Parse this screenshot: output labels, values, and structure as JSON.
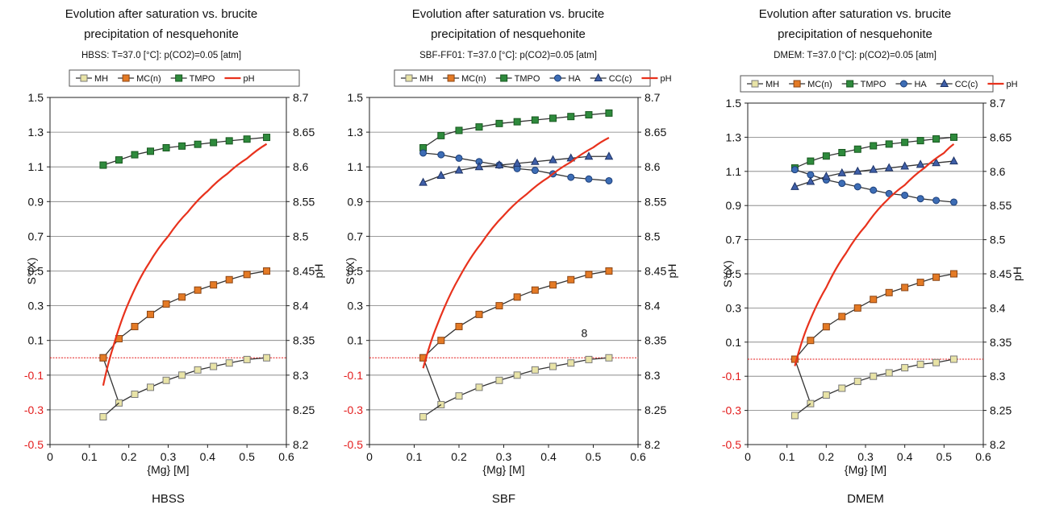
{
  "chart_data": [
    {
      "type": "line",
      "panel_label": "HBSS",
      "title": "Evolution after saturation vs. brucite",
      "title_line2": "precipitation of nesquehonite",
      "subtitle": "HBSS: T=37.0 [°C]: p(CO2)=0.05 [atm]",
      "xlabel": "{Mg} [M]",
      "ylabel": "S°(X)",
      "ylabel_right": "pH",
      "xlim": [
        0,
        0.6
      ],
      "ylim": [
        -0.5,
        1.5
      ],
      "ylim_right": [
        8.2,
        8.7
      ],
      "xticks": [
        "0",
        "0.1",
        "0.2",
        "0.3",
        "0.4",
        "0.5",
        "0.6"
      ],
      "yticks": [
        "1.5",
        "1.3",
        "1.1",
        "0.9",
        "0.7",
        "0.5",
        "0.3",
        "0.1",
        "-0.1",
        "-0.3",
        "-0.5"
      ],
      "yticks_right": [
        "8.7",
        "8.65",
        "8.6",
        "8.55",
        "8.5",
        "8.45",
        "8.4",
        "8.35",
        "8.3",
        "8.25",
        "8.2"
      ],
      "reference_line_y": 0,
      "grid": "y",
      "legend_position": "top",
      "legend": [
        "MH",
        "MC(n)",
        "TMPO",
        "pH"
      ],
      "x": [
        0.135,
        0.175,
        0.215,
        0.255,
        0.295,
        0.335,
        0.375,
        0.415,
        0.455,
        0.5,
        0.55
      ],
      "series": [
        {
          "name": "MH",
          "values": [
            0.0,
            -0.26,
            -0.21,
            -0.17,
            -0.13,
            -0.1,
            -0.07,
            -0.05,
            -0.03,
            -0.01,
            0.0
          ],
          "first_value": -0.34
        },
        {
          "name": "MC(n)",
          "values": [
            0.0,
            0.11,
            0.18,
            0.25,
            0.31,
            0.35,
            0.39,
            0.42,
            0.45,
            0.48,
            0.5
          ]
        },
        {
          "name": "TMPO",
          "values": [
            1.11,
            1.14,
            1.17,
            1.19,
            1.21,
            1.22,
            1.23,
            1.24,
            1.25,
            1.26,
            1.27
          ]
        }
      ],
      "ph_curve": {
        "x": [
          0.135,
          0.16,
          0.2,
          0.25,
          0.3,
          0.35,
          0.4,
          0.45,
          0.5,
          0.55
        ],
        "values": [
          8.285,
          8.34,
          8.405,
          8.46,
          8.5,
          8.535,
          8.565,
          8.59,
          8.612,
          8.633
        ]
      }
    },
    {
      "type": "line",
      "panel_label": "SBF",
      "title": "Evolution after saturation vs. brucite",
      "title_line2": "precipitation of nesquehonite",
      "subtitle": "SBF-FF01: T=37.0 [°C]: p(CO2)=0.05 [atm]",
      "xlabel": "{Mg} [M]",
      "ylabel": "S°(X)",
      "ylabel_right": "pH",
      "xlim": [
        0,
        0.6
      ],
      "ylim": [
        -0.5,
        1.5
      ],
      "ylim_right": [
        8.2,
        8.7
      ],
      "xticks": [
        "0",
        "0.1",
        "0.2",
        "0.3",
        "0.4",
        "0.5",
        "0.6"
      ],
      "yticks": [
        "1.5",
        "1.3",
        "1.1",
        "0.9",
        "0.7",
        "0.5",
        "0.3",
        "0.1",
        "-0.1",
        "-0.3",
        "-0.5"
      ],
      "yticks_right": [
        "8.7",
        "8.65",
        "8.6",
        "8.55",
        "8.5",
        "8.45",
        "8.4",
        "8.35",
        "8.3",
        "8.25",
        "8.2"
      ],
      "reference_line_y": 0,
      "grid": "y",
      "legend_position": "top",
      "legend": [
        "MH",
        "MC(n)",
        "TMPO",
        "HA",
        "CC(c)",
        "pH"
      ],
      "annotation": "8",
      "x": [
        0.12,
        0.16,
        0.2,
        0.245,
        0.29,
        0.33,
        0.37,
        0.41,
        0.45,
        0.49,
        0.535
      ],
      "series": [
        {
          "name": "MH",
          "values": [
            0.0,
            -0.27,
            -0.22,
            -0.17,
            -0.13,
            -0.1,
            -0.07,
            -0.05,
            -0.03,
            -0.01,
            0.0
          ],
          "first_value": -0.34
        },
        {
          "name": "MC(n)",
          "values": [
            0.0,
            0.1,
            0.18,
            0.25,
            0.3,
            0.35,
            0.39,
            0.42,
            0.45,
            0.48,
            0.5
          ]
        },
        {
          "name": "TMPO",
          "values": [
            1.21,
            1.28,
            1.31,
            1.33,
            1.35,
            1.36,
            1.37,
            1.38,
            1.39,
            1.4,
            1.41
          ]
        },
        {
          "name": "HA",
          "values": [
            1.18,
            1.17,
            1.15,
            1.13,
            1.11,
            1.09,
            1.08,
            1.06,
            1.04,
            1.03,
            1.02
          ]
        },
        {
          "name": "CC(c)",
          "values": [
            1.01,
            1.05,
            1.08,
            1.1,
            1.11,
            1.12,
            1.13,
            1.14,
            1.15,
            1.16,
            1.16
          ]
        }
      ],
      "ph_curve": {
        "x": [
          0.12,
          0.15,
          0.2,
          0.25,
          0.3,
          0.35,
          0.4,
          0.45,
          0.5,
          0.535
        ],
        "values": [
          8.31,
          8.37,
          8.44,
          8.49,
          8.53,
          8.56,
          8.585,
          8.607,
          8.628,
          8.642
        ]
      }
    },
    {
      "type": "line",
      "panel_label": "DMEM",
      "title": "Evolution after saturation vs. brucite",
      "title_line2": "precipitation of nesquehonite",
      "subtitle": "DMEM: T=37.0 [°C]: p(CO2)=0.05 [atm]",
      "xlabel": "{Mg} [M]",
      "ylabel": "S°(X)",
      "ylabel_right": "pH",
      "xlim": [
        0,
        0.6
      ],
      "ylim": [
        -0.5,
        1.5
      ],
      "ylim_right": [
        8.2,
        8.7
      ],
      "xticks": [
        "0",
        "0.1",
        "0.2",
        "0.3",
        "0.4",
        "0.5",
        "0.6"
      ],
      "yticks": [
        "1.5",
        "1.3",
        "1.1",
        "0.9",
        "0.7",
        "0.5",
        "0.3",
        "0.1",
        "-0.1",
        "-0.3",
        "-0.5"
      ],
      "yticks_right": [
        "8.7",
        "8.65",
        "8.6",
        "8.55",
        "8.5",
        "8.45",
        "8.4",
        "8.35",
        "8.3",
        "8.25",
        "8.2"
      ],
      "reference_line_y": 0,
      "grid": "y",
      "legend_position": "top",
      "legend": [
        "MH",
        "MC(n)",
        "TMPO",
        "HA",
        "CC(c)",
        "pH"
      ],
      "x": [
        0.12,
        0.16,
        0.2,
        0.24,
        0.28,
        0.32,
        0.36,
        0.4,
        0.44,
        0.48,
        0.525
      ],
      "series": [
        {
          "name": "MH",
          "values": [
            0.0,
            -0.26,
            -0.21,
            -0.17,
            -0.13,
            -0.1,
            -0.08,
            -0.05,
            -0.03,
            -0.02,
            0.0
          ],
          "first_value": -0.33
        },
        {
          "name": "MC(n)",
          "values": [
            0.0,
            0.11,
            0.19,
            0.25,
            0.3,
            0.35,
            0.39,
            0.42,
            0.45,
            0.48,
            0.5
          ]
        },
        {
          "name": "TMPO",
          "values": [
            1.12,
            1.16,
            1.19,
            1.21,
            1.23,
            1.25,
            1.26,
            1.27,
            1.28,
            1.29,
            1.3
          ]
        },
        {
          "name": "HA",
          "values": [
            1.11,
            1.08,
            1.05,
            1.03,
            1.01,
            0.99,
            0.97,
            0.96,
            0.94,
            0.93,
            0.92
          ]
        },
        {
          "name": "CC(c)",
          "values": [
            1.01,
            1.04,
            1.07,
            1.09,
            1.1,
            1.11,
            1.12,
            1.13,
            1.14,
            1.15,
            1.16
          ]
        }
      ],
      "ph_curve": {
        "x": [
          0.12,
          0.15,
          0.2,
          0.25,
          0.3,
          0.35,
          0.4,
          0.45,
          0.5,
          0.525
        ],
        "values": [
          8.315,
          8.37,
          8.43,
          8.48,
          8.52,
          8.555,
          8.58,
          8.605,
          8.627,
          8.64
        ]
      }
    }
  ],
  "colors": {
    "MH": "#e8e3a6",
    "MC(n)": "#e47a25",
    "TMPO": "#2e8a3c",
    "HA": "#3d6db5",
    "CC(c)": "#3f5fa8",
    "pH": "#e8321d",
    "connector": "#333333",
    "reference": "#e31b1b",
    "grid": "#7a7a7a"
  }
}
